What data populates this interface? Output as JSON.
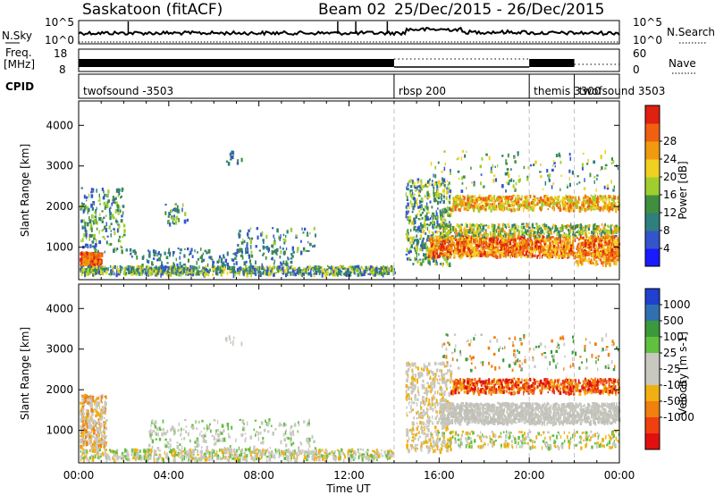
{
  "header": {
    "station": "Saskatoon (fitACF)",
    "beam": "Beam 02",
    "date_range": "25/Dec/2015 - 26/Dec/2015"
  },
  "strip_labels": {
    "nsky": "N.Sky",
    "nsky_ticks": [
      "10^5",
      "10^0"
    ],
    "nsearch": "N.Search",
    "nsearch_ticks": [
      "10^5",
      "10^0"
    ],
    "freq_line1": "Freq.",
    "freq_line2": "[MHz]",
    "freq_ticks": [
      "18",
      "8"
    ],
    "nave": "Nave",
    "nave_ticks": [
      "60",
      "0"
    ],
    "cpid": "CPID"
  },
  "cpid_segments": [
    {
      "label": "twofsound -3503",
      "start_hour": 0,
      "end_hour": 14.0
    },
    {
      "label": "rbsp 200",
      "start_hour": 14.0,
      "end_hour": 20.0
    },
    {
      "label": "themis 3300",
      "start_hour": 20.0,
      "end_hour": 22.0
    },
    {
      "label": "twofsound 3503",
      "start_hour": 22.0,
      "end_hour": 24.0
    }
  ],
  "chart_data": [
    {
      "type": "heatmap",
      "title": "Power",
      "xlabel": "",
      "ylabel": "Slant Range [km]",
      "x_ticks": [
        "00:00",
        "04:00",
        "08:00",
        "12:00",
        "16:00",
        "20:00",
        "00:00"
      ],
      "y_ticks": [
        "1000",
        "2000",
        "3000",
        "4000"
      ],
      "xlim_hours": [
        0,
        24
      ],
      "ylim_km": [
        200,
        4600
      ],
      "colorbar_label": "Power [dB]",
      "colorbar_ticks": [
        "4",
        "8",
        "12",
        "16",
        "20",
        "24",
        "28"
      ],
      "colorbar_colors": [
        "#1a1aff",
        "#3355cc",
        "#2f7f7f",
        "#3f8f3f",
        "#9fcf2f",
        "#f0d020",
        "#f09a10",
        "#f06010",
        "#e02010"
      ]
    },
    {
      "type": "heatmap",
      "title": "Velocity",
      "xlabel": "Time UT",
      "ylabel": "Slant Range [km]",
      "x_ticks": [
        "00:00",
        "04:00",
        "08:00",
        "12:00",
        "16:00",
        "20:00",
        "00:00"
      ],
      "y_ticks": [
        "1000",
        "2000",
        "3000",
        "4000"
      ],
      "xlim_hours": [
        0,
        24
      ],
      "ylim_km": [
        200,
        4600
      ],
      "colorbar_label": "Velocity [m s-1]",
      "colorbar_ticks": [
        "1000",
        "500",
        "100",
        "25",
        "-25",
        "-100",
        "-500",
        "-1000"
      ],
      "colorbar_colors": [
        "#2040d0",
        "#3070b0",
        "#3a9a3a",
        "#60c040",
        "#c8c8c0",
        "#c8c8c0",
        "#f0b010",
        "#f08010",
        "#f04010",
        "#e01010"
      ]
    }
  ],
  "axis_title": "Time UT"
}
